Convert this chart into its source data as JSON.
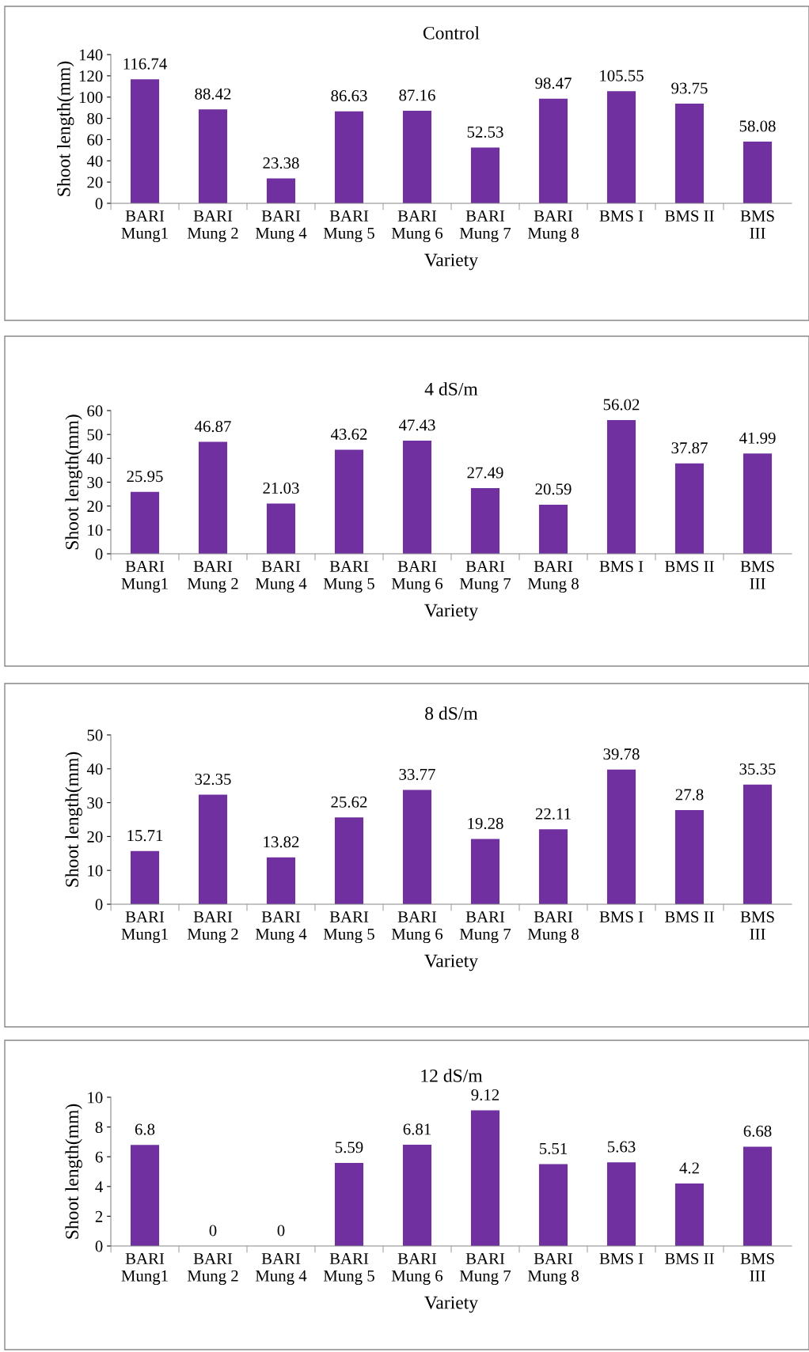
{
  "chart_data": [
    {
      "type": "bar",
      "title": "Control",
      "xlabel": "Variety",
      "ylabel": "Shoot length(mm)",
      "categories": [
        "BARI\nMung1",
        "BARI\nMung 2",
        "BARI\nMung 4",
        "BARI\nMung 5",
        "BARI\nMung 6",
        "BARI\nMung 7",
        "BARI\nMung 8",
        "BMS I",
        "BMS II",
        "BMS\nIII"
      ],
      "values": [
        116.74,
        88.42,
        23.38,
        86.63,
        87.16,
        52.53,
        98.47,
        105.55,
        93.75,
        58.08
      ],
      "color": "#7030a0",
      "ylim": [
        0,
        140
      ],
      "yticks": [
        0,
        20,
        40,
        60,
        80,
        100,
        120,
        140
      ],
      "data_labels": true,
      "grid": false
    },
    {
      "type": "bar",
      "title": "4 dS/m",
      "xlabel": "Variety",
      "ylabel": "Shoot length(mm)",
      "categories": [
        "BARI\nMung1",
        "BARI\nMung 2",
        "BARI\nMung 4",
        "BARI\nMung 5",
        "BARI\nMung 6",
        "BARI\nMung 7",
        "BARI\nMung 8",
        "BMS I",
        "BMS II",
        "BMS\nIII"
      ],
      "values": [
        25.95,
        46.87,
        21.03,
        43.62,
        47.43,
        27.49,
        20.59,
        56.02,
        37.87,
        41.99
      ],
      "color": "#7030a0",
      "ylim": [
        0,
        60
      ],
      "yticks": [
        0,
        10,
        20,
        30,
        40,
        50,
        60
      ],
      "data_labels": true,
      "grid": false
    },
    {
      "type": "bar",
      "title": "8 dS/m",
      "xlabel": "Variety",
      "ylabel": "Shoot length(mm)",
      "categories": [
        "BARI\nMung1",
        "BARI\nMung 2",
        "BARI\nMung 4",
        "BARI\nMung 5",
        "BARI\nMung 6",
        "BARI\nMung 7",
        "BARI\nMung 8",
        "BMS I",
        "BMS II",
        "BMS\nIII"
      ],
      "values": [
        15.71,
        32.35,
        13.82,
        25.62,
        33.77,
        19.28,
        22.11,
        39.78,
        27.8,
        35.35
      ],
      "color": "#7030a0",
      "ylim": [
        0,
        50
      ],
      "yticks": [
        0,
        10,
        20,
        30,
        40,
        50
      ],
      "data_labels": true,
      "grid": false
    },
    {
      "type": "bar",
      "title": "12 dS/m",
      "xlabel": "Variety",
      "ylabel": "Shoot length(mm)",
      "categories": [
        "BARI\nMung1",
        "BARI\nMung 2",
        "BARI\nMung 4",
        "BARI\nMung 5",
        "BARI\nMung 6",
        "BARI\nMung 7",
        "BARI\nMung 8",
        "BMS I",
        "BMS II",
        "BMS\nIII"
      ],
      "values": [
        6.8,
        0,
        0,
        5.59,
        6.81,
        9.12,
        5.51,
        5.63,
        4.2,
        6.68
      ],
      "color": "#7030a0",
      "ylim": [
        0,
        10
      ],
      "yticks": [
        0,
        2,
        4,
        6,
        8,
        10
      ],
      "data_labels": true,
      "grid": false
    }
  ]
}
